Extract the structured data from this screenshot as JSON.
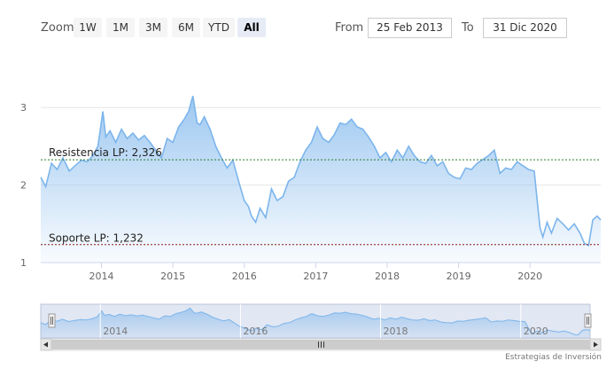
{
  "toolbar": {
    "zoom_label": "Zoom",
    "zoom_buttons": [
      "1W",
      "1M",
      "3M",
      "6M",
      "YTD",
      "All"
    ],
    "active_zoom": "All",
    "from_label": "From",
    "from_value": "25 Feb 2013",
    "to_label": "To",
    "to_value": "31 Dic 2020"
  },
  "credit": "Estrategias de Inversión",
  "colors": {
    "line": "#7cb5ec",
    "resistance": "#2e7d32",
    "support": "#8b1a1a",
    "grid": "#e6e6e6",
    "navigator_mask": "#c8d4ea"
  },
  "chart_data": {
    "type": "area",
    "x_unit": "year",
    "ylim": [
      1,
      3.3
    ],
    "xlim": [
      2013.15,
      2020.99
    ],
    "y_ticks": [
      1,
      2,
      3
    ],
    "x_ticks": [
      2014,
      2015,
      2016,
      2017,
      2018,
      2019,
      2020
    ],
    "grid": true,
    "legend": "none",
    "x": [
      2013.15,
      2013.22,
      2013.3,
      2013.38,
      2013.46,
      2013.55,
      2013.63,
      2013.72,
      2013.8,
      2013.88,
      2013.95,
      2014.02,
      2014.06,
      2014.12,
      2014.2,
      2014.28,
      2014.36,
      2014.44,
      2014.52,
      2014.6,
      2014.68,
      2014.76,
      2014.84,
      2014.92,
      2015.0,
      2015.08,
      2015.16,
      2015.22,
      2015.28,
      2015.34,
      2015.38,
      2015.44,
      2015.52,
      2015.6,
      2015.68,
      2015.76,
      2015.84,
      2015.92,
      2016.0,
      2016.06,
      2016.1,
      2016.16,
      2016.22,
      2016.3,
      2016.38,
      2016.46,
      2016.54,
      2016.62,
      2016.7,
      2016.78,
      2016.86,
      2016.94,
      2017.02,
      2017.1,
      2017.18,
      2017.26,
      2017.34,
      2017.42,
      2017.5,
      2017.58,
      2017.66,
      2017.74,
      2017.82,
      2017.9,
      2017.98,
      2018.06,
      2018.14,
      2018.22,
      2018.3,
      2018.38,
      2018.46,
      2018.54,
      2018.62,
      2018.7,
      2018.78,
      2018.86,
      2018.94,
      2019.02,
      2019.1,
      2019.18,
      2019.26,
      2019.34,
      2019.42,
      2019.5,
      2019.58,
      2019.66,
      2019.74,
      2019.82,
      2019.9,
      2019.98,
      2020.06,
      2020.1,
      2020.14,
      2020.18,
      2020.24,
      2020.3,
      2020.38,
      2020.46,
      2020.54,
      2020.62,
      2020.7,
      2020.76,
      2020.82,
      2020.88,
      2020.94,
      2020.99
    ],
    "y": [
      2.1,
      1.98,
      2.28,
      2.2,
      2.35,
      2.18,
      2.25,
      2.32,
      2.3,
      2.38,
      2.5,
      2.95,
      2.62,
      2.7,
      2.55,
      2.72,
      2.6,
      2.67,
      2.58,
      2.64,
      2.55,
      2.45,
      2.35,
      2.6,
      2.55,
      2.75,
      2.85,
      2.95,
      3.15,
      2.8,
      2.78,
      2.88,
      2.72,
      2.5,
      2.35,
      2.22,
      2.32,
      2.05,
      1.8,
      1.72,
      1.6,
      1.52,
      1.7,
      1.58,
      1.95,
      1.8,
      1.85,
      2.05,
      2.1,
      2.3,
      2.45,
      2.55,
      2.75,
      2.6,
      2.55,
      2.65,
      2.8,
      2.78,
      2.85,
      2.75,
      2.72,
      2.62,
      2.5,
      2.35,
      2.42,
      2.3,
      2.45,
      2.35,
      2.5,
      2.38,
      2.3,
      2.28,
      2.38,
      2.25,
      2.3,
      2.15,
      2.1,
      2.08,
      2.22,
      2.2,
      2.28,
      2.33,
      2.38,
      2.45,
      2.15,
      2.22,
      2.2,
      2.3,
      2.25,
      2.2,
      2.18,
      1.8,
      1.45,
      1.33,
      1.52,
      1.38,
      1.57,
      1.5,
      1.42,
      1.5,
      1.38,
      1.25,
      1.22,
      1.55,
      1.6,
      1.55
    ],
    "annotations": [
      {
        "label": "Resistencia LP: 2,326",
        "value": 2.326,
        "color": "#2e7d32"
      },
      {
        "label": "Soporte LP: 1,232",
        "value": 1.232,
        "color": "#8b1a1a"
      }
    ]
  }
}
